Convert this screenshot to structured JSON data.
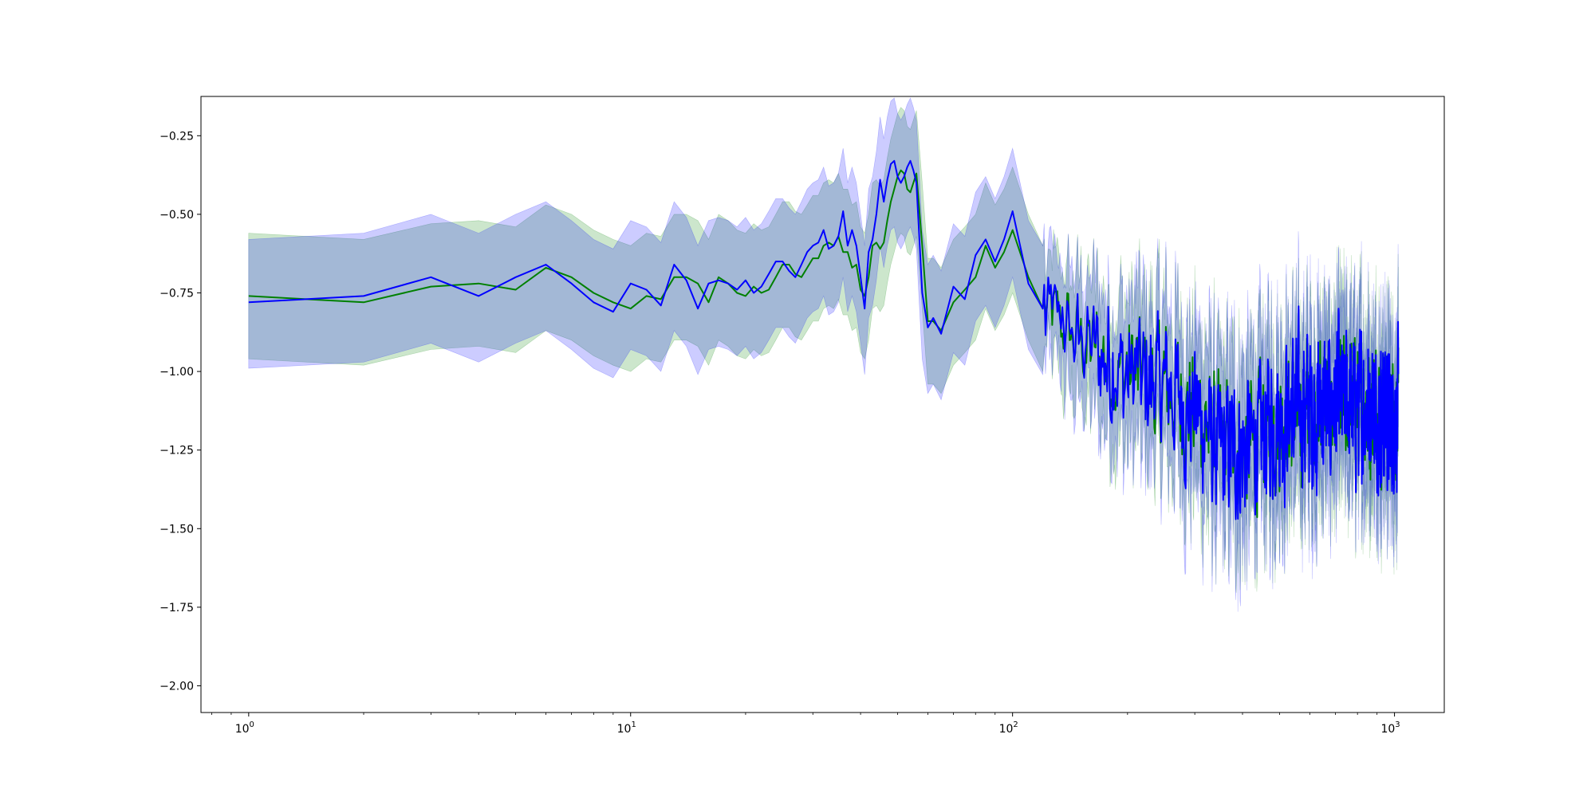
{
  "chart_data": {
    "type": "line",
    "title": "",
    "xlabel": "",
    "ylabel": "",
    "xscale": "log",
    "xlim": [
      0.75,
      1350
    ],
    "ylim": [
      -2.085,
      -0.125
    ],
    "grid": false,
    "legend": "none",
    "x_ticks": [
      {
        "base": "10",
        "exp": "0",
        "value": 1
      },
      {
        "base": "10",
        "exp": "1",
        "value": 10
      },
      {
        "base": "10",
        "exp": "2",
        "value": 100
      },
      {
        "base": "10",
        "exp": "3",
        "value": 1000
      }
    ],
    "y_ticks": [
      {
        "label": "−0.25",
        "value": -0.25
      },
      {
        "label": "−0.50",
        "value": -0.5
      },
      {
        "label": "−0.75",
        "value": -0.75
      },
      {
        "label": "−1.00",
        "value": -1.0
      },
      {
        "label": "−1.25",
        "value": -1.25
      },
      {
        "label": "−1.50",
        "value": -1.5
      },
      {
        "label": "−1.75",
        "value": -1.75
      },
      {
        "label": "−2.00",
        "value": -2.0
      }
    ],
    "x_range": [
      1,
      1024
    ],
    "series": [
      {
        "color": "#008000",
        "band_color": "#008000",
        "band_opacity": 0.2,
        "mean": [
          [
            1,
            -0.76
          ],
          [
            2,
            -0.78
          ],
          [
            3,
            -0.73
          ],
          [
            4,
            -0.72
          ],
          [
            5,
            -0.74
          ],
          [
            6,
            -0.67
          ],
          [
            7,
            -0.7
          ],
          [
            8,
            -0.75
          ],
          [
            9,
            -0.78
          ],
          [
            10,
            -0.8
          ],
          [
            11,
            -0.76
          ],
          [
            12,
            -0.77
          ],
          [
            13,
            -0.7
          ],
          [
            14,
            -0.7
          ],
          [
            15,
            -0.72
          ],
          [
            16,
            -0.78
          ],
          [
            17,
            -0.7
          ],
          [
            18,
            -0.72
          ],
          [
            19,
            -0.75
          ],
          [
            20,
            -0.76
          ],
          [
            21,
            -0.73
          ],
          [
            22,
            -0.75
          ],
          [
            23,
            -0.74
          ],
          [
            24,
            -0.7
          ],
          [
            25,
            -0.66
          ],
          [
            26,
            -0.66
          ],
          [
            27,
            -0.69
          ],
          [
            28,
            -0.7
          ],
          [
            29,
            -0.67
          ],
          [
            30,
            -0.64
          ],
          [
            31,
            -0.64
          ],
          [
            32,
            -0.6
          ],
          [
            33,
            -0.59
          ],
          [
            34,
            -0.6
          ],
          [
            35,
            -0.57
          ],
          [
            36,
            -0.62
          ],
          [
            37,
            -0.62
          ],
          [
            38,
            -0.67
          ],
          [
            39,
            -0.66
          ],
          [
            40,
            -0.74
          ],
          [
            41,
            -0.76
          ],
          [
            42,
            -0.7
          ],
          [
            43,
            -0.6
          ],
          [
            44,
            -0.59
          ],
          [
            45,
            -0.61
          ],
          [
            46,
            -0.59
          ],
          [
            47,
            -0.52
          ],
          [
            48,
            -0.46
          ],
          [
            49,
            -0.42
          ],
          [
            50,
            -0.38
          ],
          [
            51,
            -0.36
          ],
          [
            52,
            -0.37
          ],
          [
            53,
            -0.42
          ],
          [
            54,
            -0.43
          ],
          [
            55,
            -0.4
          ],
          [
            56,
            -0.37
          ],
          [
            58,
            -0.6
          ],
          [
            60,
            -0.84
          ],
          [
            62,
            -0.84
          ],
          [
            65,
            -0.87
          ],
          [
            70,
            -0.78
          ],
          [
            75,
            -0.74
          ],
          [
            80,
            -0.7
          ],
          [
            85,
            -0.6
          ],
          [
            90,
            -0.67
          ],
          [
            95,
            -0.62
          ],
          [
            100,
            -0.55
          ],
          [
            110,
            -0.7
          ],
          [
            120,
            -0.8
          ]
        ],
        "band_half_width": 0.2
      },
      {
        "color": "#0000ff",
        "band_color": "#0000ff",
        "band_opacity": 0.2,
        "mean": [
          [
            1,
            -0.78
          ],
          [
            2,
            -0.76
          ],
          [
            3,
            -0.7
          ],
          [
            4,
            -0.76
          ],
          [
            5,
            -0.7
          ],
          [
            6,
            -0.66
          ],
          [
            7,
            -0.72
          ],
          [
            8,
            -0.78
          ],
          [
            9,
            -0.81
          ],
          [
            10,
            -0.72
          ],
          [
            11,
            -0.74
          ],
          [
            12,
            -0.79
          ],
          [
            13,
            -0.66
          ],
          [
            14,
            -0.71
          ],
          [
            15,
            -0.8
          ],
          [
            16,
            -0.72
          ],
          [
            17,
            -0.71
          ],
          [
            18,
            -0.72
          ],
          [
            19,
            -0.74
          ],
          [
            20,
            -0.71
          ],
          [
            21,
            -0.75
          ],
          [
            22,
            -0.73
          ],
          [
            23,
            -0.69
          ],
          [
            24,
            -0.65
          ],
          [
            25,
            -0.65
          ],
          [
            26,
            -0.68
          ],
          [
            27,
            -0.7
          ],
          [
            28,
            -0.66
          ],
          [
            29,
            -0.62
          ],
          [
            30,
            -0.6
          ],
          [
            31,
            -0.59
          ],
          [
            32,
            -0.55
          ],
          [
            33,
            -0.61
          ],
          [
            34,
            -0.6
          ],
          [
            35,
            -0.57
          ],
          [
            36,
            -0.49
          ],
          [
            37,
            -0.6
          ],
          [
            38,
            -0.55
          ],
          [
            39,
            -0.6
          ],
          [
            40,
            -0.7
          ],
          [
            41,
            -0.8
          ],
          [
            42,
            -0.62
          ],
          [
            43,
            -0.58
          ],
          [
            44,
            -0.5
          ],
          [
            45,
            -0.39
          ],
          [
            46,
            -0.46
          ],
          [
            47,
            -0.39
          ],
          [
            48,
            -0.34
          ],
          [
            49,
            -0.33
          ],
          [
            50,
            -0.38
          ],
          [
            51,
            -0.4
          ],
          [
            52,
            -0.38
          ],
          [
            53,
            -0.35
          ],
          [
            54,
            -0.33
          ],
          [
            55,
            -0.36
          ],
          [
            56,
            -0.4
          ],
          [
            58,
            -0.75
          ],
          [
            60,
            -0.86
          ],
          [
            62,
            -0.83
          ],
          [
            65,
            -0.88
          ],
          [
            70,
            -0.73
          ],
          [
            75,
            -0.77
          ],
          [
            80,
            -0.63
          ],
          [
            85,
            -0.58
          ],
          [
            90,
            -0.65
          ],
          [
            95,
            -0.58
          ],
          [
            100,
            -0.49
          ],
          [
            110,
            -0.72
          ],
          [
            120,
            -0.8
          ]
        ],
        "band_half_width": 0.2
      }
    ],
    "tail": {
      "x_start": 120,
      "x_end": 1024,
      "center_trend": [
        [
          120,
          -0.8
        ],
        [
          150,
          -0.9
        ],
        [
          200,
          -1.0
        ],
        [
          250,
          -1.05
        ],
        [
          300,
          -1.12
        ],
        [
          350,
          -1.25
        ],
        [
          400,
          -1.25
        ],
        [
          500,
          -1.15
        ],
        [
          600,
          -1.12
        ],
        [
          700,
          -1.1
        ],
        [
          800,
          -1.1
        ],
        [
          900,
          -1.12
        ],
        [
          1024,
          -1.15
        ]
      ],
      "noise_amplitude": [
        [
          120,
          0.15
        ],
        [
          200,
          0.3
        ],
        [
          300,
          0.3
        ],
        [
          400,
          0.32
        ],
        [
          600,
          0.33
        ],
        [
          1024,
          0.3
        ]
      ],
      "band_half_width": [
        [
          120,
          0.15
        ],
        [
          200,
          0.22
        ],
        [
          400,
          0.25
        ],
        [
          1024,
          0.22
        ]
      ]
    }
  }
}
